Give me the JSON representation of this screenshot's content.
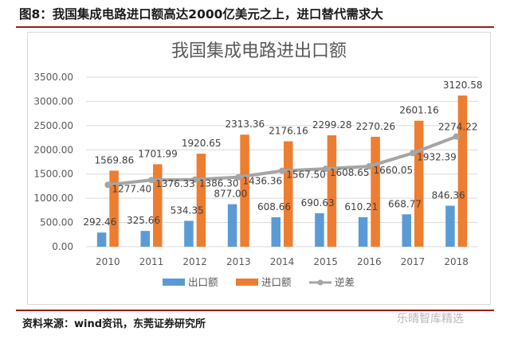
{
  "figure": {
    "title": "图8：我国集成电路进口额高达2000亿美元之上，进口替代需求大",
    "source": "资料来源：wind资讯，东莞证券研究所",
    "watermark": "乐晴智库精选"
  },
  "colors": {
    "export": "#5b9bd5",
    "import": "#ed7d31",
    "deficit": "#a5a5a5",
    "rule": "#9b1c1c"
  },
  "chart_data": {
    "type": "bar",
    "title": "我国集成电路进出口额",
    "xlabel": "",
    "ylabel": "",
    "ylim": [
      0,
      3500
    ],
    "yticks": [
      "0.00",
      "500.00",
      "1000.00",
      "1500.00",
      "2000.00",
      "2500.00",
      "3000.00",
      "3500.00"
    ],
    "grid": true,
    "legend_position": "bottom",
    "categories": [
      "2010",
      "2011",
      "2012",
      "2013",
      "2014",
      "2015",
      "2016",
      "2017",
      "2018"
    ],
    "series": [
      {
        "name": "出口额",
        "type": "bar",
        "values": [
          292.46,
          325.66,
          534.35,
          877.0,
          608.66,
          690.63,
          610.21,
          668.77,
          846.36
        ],
        "labels": [
          "292.46",
          "325.66",
          "534.35",
          "877.00",
          "608.66",
          "690.63",
          "610.21",
          "668.77",
          "846.36"
        ]
      },
      {
        "name": "进口额",
        "type": "bar",
        "values": [
          1569.86,
          1701.99,
          1920.65,
          2313.36,
          2176.16,
          2299.28,
          2270.26,
          2601.16,
          3120.58
        ],
        "labels": [
          "1569.86",
          "1701.99",
          "1920.65",
          "2313.36",
          "2176.16",
          "2299.28",
          "2270.26",
          "2601.16",
          "3120.58"
        ]
      },
      {
        "name": "逆差",
        "type": "line",
        "values": [
          1277.4,
          1376.33,
          1386.3,
          1436.36,
          1567.5,
          1608.65,
          1660.05,
          1932.39,
          2274.22
        ],
        "labels": [
          "1277.40",
          "1376.33",
          "1386.30",
          "1436.36",
          "1567.50",
          "1608.65",
          "1660.05",
          "1932.39",
          "2274.22"
        ]
      }
    ]
  }
}
